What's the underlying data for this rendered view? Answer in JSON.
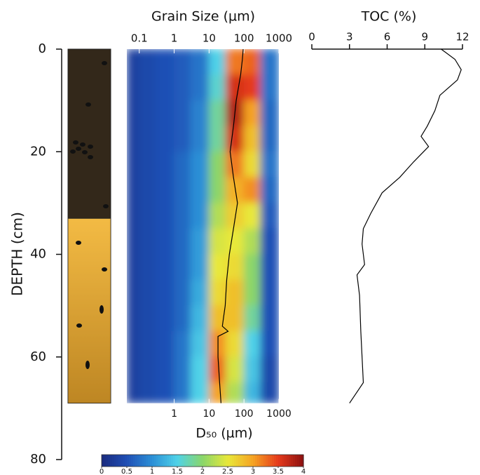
{
  "chart_data": [
    {
      "type": "lithology",
      "ylabel": "DEPTH (cm)",
      "ylim": [
        0,
        80
      ],
      "yticks": [
        0,
        20,
        40,
        60,
        80
      ],
      "layers": [
        {
          "top": 0,
          "bottom": 33,
          "color": "#33281a"
        },
        {
          "top": 33,
          "bottom": 69,
          "color": "#e9ac35"
        }
      ]
    },
    {
      "type": "heatmap",
      "title": "Grain Size (µm)",
      "xlabel": "D₅₀ (µm)",
      "xscale": "log",
      "xlim": [
        0.044,
        1000
      ],
      "xticks": [
        0.1,
        1,
        10,
        100,
        1000
      ],
      "x2ticks": [
        1,
        10,
        100,
        1000
      ],
      "ylim": [
        0,
        80
      ],
      "xbins": [
        0.044,
        0.1,
        0.3,
        1,
        3,
        10,
        30,
        100,
        300,
        1000
      ],
      "ybins": [
        0,
        5,
        10,
        15,
        20,
        25,
        30,
        35,
        40,
        45,
        50,
        55,
        60,
        65,
        69
      ],
      "z": [
        [
          0.3,
          0.4,
          0.5,
          0.6,
          0.8,
          1.5,
          3.2,
          3.3,
          0.8
        ],
        [
          0.3,
          0.4,
          0.5,
          0.6,
          0.8,
          1.6,
          3.6,
          3.5,
          0.8
        ],
        [
          0.3,
          0.4,
          0.5,
          0.6,
          0.9,
          1.8,
          3.8,
          3.0,
          0.7
        ],
        [
          0.3,
          0.4,
          0.5,
          0.6,
          0.9,
          1.8,
          3.6,
          2.8,
          0.7
        ],
        [
          0.3,
          0.4,
          0.5,
          0.7,
          1.0,
          2.0,
          3.2,
          2.6,
          0.8
        ],
        [
          0.3,
          0.4,
          0.5,
          0.7,
          1.0,
          2.0,
          2.9,
          3.1,
          0.7
        ],
        [
          0.3,
          0.4,
          0.5,
          0.7,
          1.0,
          2.2,
          2.7,
          2.5,
          0.6
        ],
        [
          0.3,
          0.4,
          0.5,
          0.7,
          1.1,
          2.4,
          2.5,
          2.2,
          0.5
        ],
        [
          0.3,
          0.4,
          0.5,
          0.7,
          1.1,
          2.5,
          2.6,
          2.0,
          0.5
        ],
        [
          0.3,
          0.4,
          0.5,
          0.7,
          1.2,
          2.6,
          2.8,
          2.0,
          0.5
        ],
        [
          0.3,
          0.4,
          0.5,
          0.7,
          1.3,
          2.8,
          2.8,
          1.8,
          0.5
        ],
        [
          0.3,
          0.4,
          0.5,
          0.8,
          1.4,
          3.1,
          2.6,
          1.5,
          0.5
        ],
        [
          0.3,
          0.4,
          0.5,
          0.8,
          1.5,
          3.3,
          2.4,
          1.4,
          0.4
        ],
        [
          0.3,
          0.4,
          0.5,
          0.8,
          1.5,
          3.0,
          2.2,
          1.3,
          0.4
        ]
      ],
      "d50": {
        "color": "#000000",
        "depth": [
          0,
          2,
          5,
          10,
          15,
          20,
          25,
          30,
          35,
          40,
          45,
          50,
          54,
          55,
          56,
          60,
          65,
          69
        ],
        "values": [
          95,
          90,
          80,
          60,
          50,
          40,
          50,
          65,
          50,
          38,
          32,
          29,
          24,
          35,
          18,
          18,
          20,
          22
        ]
      },
      "colorbar": {
        "lim": [
          0,
          4
        ],
        "ticks": [
          0,
          0.5,
          1,
          1.5,
          2,
          2.5,
          3,
          3.5,
          4
        ],
        "colors": [
          "#1a2a7e",
          "#1f4fb5",
          "#2b8fd6",
          "#4fd2e8",
          "#8ad66a",
          "#e8e83a",
          "#f6a323",
          "#e53a1b",
          "#8c1010"
        ]
      }
    },
    {
      "type": "line",
      "title": "TOC (%)",
      "xlim": [
        0,
        12
      ],
      "xticks": [
        0,
        3,
        6,
        9,
        12
      ],
      "ylim": [
        0,
        80
      ],
      "color": "#000000",
      "depth": [
        0,
        2,
        4,
        6,
        9,
        12,
        15,
        17,
        19,
        22,
        25,
        28,
        32,
        35,
        38,
        42,
        44,
        48,
        55,
        60,
        65,
        69
      ],
      "values": [
        10.3,
        11.4,
        11.9,
        11.6,
        10.2,
        9.8,
        9.2,
        8.7,
        9.3,
        8.1,
        7.0,
        5.6,
        4.7,
        4.1,
        4.0,
        4.2,
        3.6,
        3.8,
        3.9,
        4.0,
        4.1,
        3.0
      ]
    }
  ]
}
